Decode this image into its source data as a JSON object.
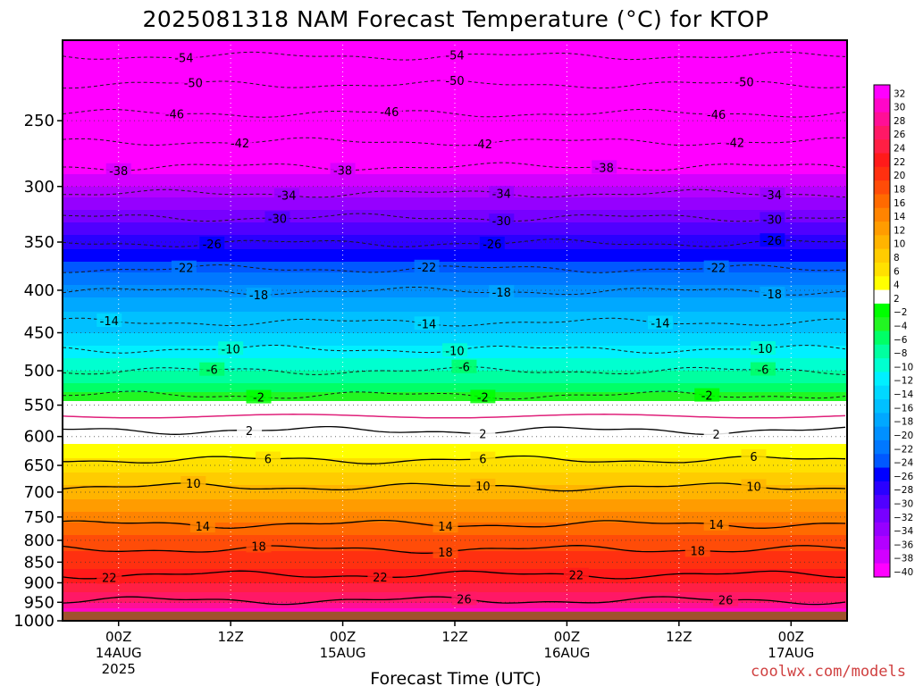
{
  "chart_data": {
    "type": "heatmap",
    "title": "2025081318 NAM Forecast Temperature (°C) for KTOP",
    "xlabel": "Forecast Time (UTC)",
    "ylabel": "",
    "watermark": "coolwx.com/models",
    "y_axis": {
      "unit": "hPa",
      "scale": "log",
      "range": [
        200,
        1000
      ],
      "ticks": [
        250,
        300,
        350,
        400,
        450,
        500,
        550,
        600,
        650,
        700,
        750,
        800,
        850,
        900,
        950,
        1000
      ],
      "tick_labels": [
        "250",
        "300",
        "350",
        "400",
        "450",
        "500",
        "550",
        "600",
        "650",
        "700",
        "750",
        "800",
        "850",
        "900",
        "950",
        "1000"
      ]
    },
    "x_axis": {
      "range_hours": [
        -6,
        78
      ],
      "ticks": [
        {
          "hour": 0,
          "line1": "00Z",
          "line2": "14AUG",
          "line3": "2025"
        },
        {
          "hour": 12,
          "line1": "12Z",
          "line2": "",
          "line3": ""
        },
        {
          "hour": 24,
          "line1": "00Z",
          "line2": "15AUG",
          "line3": ""
        },
        {
          "hour": 36,
          "line1": "12Z",
          "line2": "",
          "line3": ""
        },
        {
          "hour": 48,
          "line1": "00Z",
          "line2": "16AUG",
          "line3": ""
        },
        {
          "hour": 60,
          "line1": "12Z",
          "line2": "",
          "line3": ""
        },
        {
          "hour": 72,
          "line1": "00Z",
          "line2": "17AUG",
          "line3": ""
        }
      ]
    },
    "grid": true,
    "colorbar": {
      "levels": [
        32,
        30,
        28,
        26,
        24,
        22,
        20,
        18,
        16,
        14,
        12,
        10,
        8,
        6,
        4,
        2,
        -2,
        -4,
        -6,
        -8,
        -10,
        -12,
        -14,
        -16,
        -18,
        -20,
        -22,
        -24,
        -26,
        -28,
        -30,
        -32,
        -34,
        -36,
        -38,
        -40
      ],
      "labels": [
        "32",
        "30",
        "28",
        "26",
        "24",
        "22",
        "20",
        "18",
        "16",
        "14",
        "12",
        "10",
        "8",
        "6",
        "4",
        "2",
        "−2",
        "−4",
        "−6",
        "−8",
        "−10",
        "−12",
        "−14",
        "−16",
        "−18",
        "−20",
        "−22",
        "−24",
        "−26",
        "−28",
        "−30",
        "−32",
        "−34",
        "−36",
        "−38",
        "−40"
      ]
    },
    "profile": [
      {
        "p": 200,
        "t": -56
      },
      {
        "p": 225,
        "t": -51
      },
      {
        "p": 250,
        "t": -46
      },
      {
        "p": 275,
        "t": -41
      },
      {
        "p": 300,
        "t": -36
      },
      {
        "p": 325,
        "t": -31
      },
      {
        "p": 350,
        "t": -27
      },
      {
        "p": 375,
        "t": -23
      },
      {
        "p": 400,
        "t": -19
      },
      {
        "p": 425,
        "t": -16
      },
      {
        "p": 450,
        "t": -14
      },
      {
        "p": 475,
        "t": -11
      },
      {
        "p": 500,
        "t": -8
      },
      {
        "p": 525,
        "t": -5
      },
      {
        "p": 550,
        "t": -1
      },
      {
        "p": 575,
        "t": 0
      },
      {
        "p": 600,
        "t": 3
      },
      {
        "p": 625,
        "t": 5
      },
      {
        "p": 650,
        "t": 7
      },
      {
        "p": 700,
        "t": 11
      },
      {
        "p": 750,
        "t": 15
      },
      {
        "p": 800,
        "t": 19
      },
      {
        "p": 850,
        "t": 21
      },
      {
        "p": 900,
        "t": 24
      },
      {
        "p": 950,
        "t": 28
      },
      {
        "p": 975,
        "t": 31
      }
    ],
    "surface_pressure": 975,
    "contours": [
      {
        "value": -54,
        "p": 209,
        "labels": [
          {
            "hour": 7,
            "text": "-54"
          },
          {
            "hour": 36,
            "text": "-54"
          }
        ]
      },
      {
        "value": -50,
        "p": 226,
        "labels": [
          {
            "hour": 8,
            "text": "-50"
          },
          {
            "hour": 36,
            "text": "-50"
          },
          {
            "hour": 67,
            "text": "-50"
          }
        ]
      },
      {
        "value": -46,
        "p": 245,
        "labels": [
          {
            "hour": 6,
            "text": "-46"
          },
          {
            "hour": 29,
            "text": "-46"
          },
          {
            "hour": 64,
            "text": "-46"
          }
        ]
      },
      {
        "value": -42,
        "p": 265,
        "labels": [
          {
            "hour": 13,
            "text": "-42"
          },
          {
            "hour": 39,
            "text": "-42"
          },
          {
            "hour": 66,
            "text": "-42"
          }
        ]
      },
      {
        "value": -38,
        "p": 284,
        "labels": [
          {
            "hour": 0,
            "text": "-38"
          },
          {
            "hour": 24,
            "text": "-38"
          },
          {
            "hour": 52,
            "text": "-38"
          }
        ]
      },
      {
        "value": -34,
        "p": 306,
        "labels": [
          {
            "hour": 18,
            "text": "-34"
          },
          {
            "hour": 41,
            "text": "-34"
          },
          {
            "hour": 70,
            "text": "-34"
          }
        ]
      },
      {
        "value": -30,
        "p": 327,
        "labels": [
          {
            "hour": 17,
            "text": "-30"
          },
          {
            "hour": 41,
            "text": "-30"
          },
          {
            "hour": 70,
            "text": "-30"
          }
        ]
      },
      {
        "value": -26,
        "p": 351,
        "labels": [
          {
            "hour": 10,
            "text": "-26"
          },
          {
            "hour": 40,
            "text": "-26"
          },
          {
            "hour": 70,
            "text": "-26"
          }
        ]
      },
      {
        "value": -22,
        "p": 377,
        "labels": [
          {
            "hour": 7,
            "text": "-22"
          },
          {
            "hour": 33,
            "text": "-22"
          },
          {
            "hour": 64,
            "text": "-22"
          }
        ]
      },
      {
        "value": -18,
        "p": 401,
        "labels": [
          {
            "hour": 15,
            "text": "-18"
          },
          {
            "hour": 41,
            "text": "-18"
          },
          {
            "hour": 70,
            "text": "-18"
          }
        ]
      },
      {
        "value": -14,
        "p": 437,
        "labels": [
          {
            "hour": -1,
            "text": "-14"
          },
          {
            "hour": 33,
            "text": "-14"
          },
          {
            "hour": 58,
            "text": "-14"
          }
        ]
      },
      {
        "value": -10,
        "p": 471,
        "labels": [
          {
            "hour": 12,
            "text": "-10"
          },
          {
            "hour": 36,
            "text": "-10"
          },
          {
            "hour": 69,
            "text": "-10"
          }
        ]
      },
      {
        "value": -6,
        "p": 500,
        "labels": [
          {
            "hour": 10,
            "text": "-6"
          },
          {
            "hour": 37,
            "text": "-6"
          },
          {
            "hour": 69,
            "text": "-6"
          }
        ]
      },
      {
        "value": -2,
        "p": 535,
        "labels": [
          {
            "hour": 15,
            "text": "-2"
          },
          {
            "hour": 39,
            "text": "-2"
          },
          {
            "hour": 63,
            "text": "-2"
          }
        ]
      },
      {
        "value": 2,
        "p": 590,
        "labels": [
          {
            "hour": 14,
            "text": "2"
          },
          {
            "hour": 39,
            "text": "2"
          },
          {
            "hour": 64,
            "text": "2"
          }
        ]
      },
      {
        "value": 6,
        "p": 640,
        "labels": [
          {
            "hour": 16,
            "text": "6"
          },
          {
            "hour": 39,
            "text": "6"
          },
          {
            "hour": 68,
            "text": "6"
          }
        ]
      },
      {
        "value": 10,
        "p": 690,
        "labels": [
          {
            "hour": 8,
            "text": "10"
          },
          {
            "hour": 39,
            "text": "10"
          },
          {
            "hour": 68,
            "text": "10"
          }
        ]
      },
      {
        "value": 14,
        "p": 765,
        "labels": [
          {
            "hour": 9,
            "text": "14"
          },
          {
            "hour": 35,
            "text": "14"
          },
          {
            "hour": 64,
            "text": "14"
          }
        ]
      },
      {
        "value": 18,
        "p": 820,
        "labels": [
          {
            "hour": 15,
            "text": "18"
          },
          {
            "hour": 35,
            "text": "18"
          },
          {
            "hour": 62,
            "text": "18"
          }
        ]
      },
      {
        "value": 22,
        "p": 880,
        "labels": [
          {
            "hour": -1,
            "text": "22"
          },
          {
            "hour": 28,
            "text": "22"
          },
          {
            "hour": 49,
            "text": "22"
          }
        ]
      },
      {
        "value": 26,
        "p": 945,
        "labels": [
          {
            "hour": 37,
            "text": "26"
          },
          {
            "hour": 65,
            "text": "26"
          }
        ]
      }
    ]
  }
}
